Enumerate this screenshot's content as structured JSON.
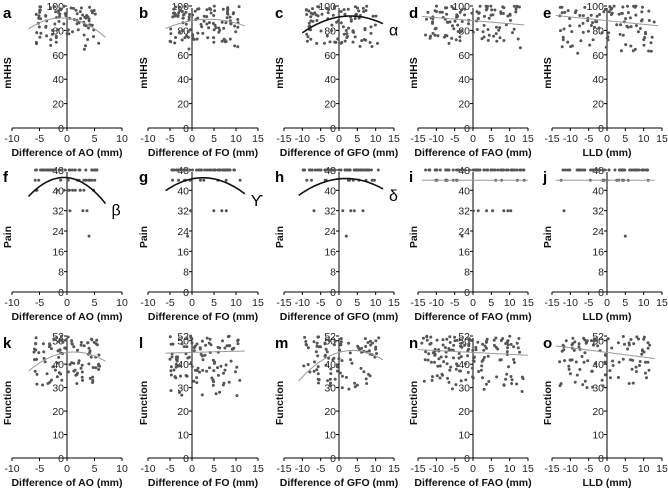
{
  "figure": {
    "rows": [
      {
        "y_label": "mHHS",
        "ylim": [
          0,
          100
        ],
        "y_ticks": [
          "0",
          "20",
          "40",
          "60",
          "80",
          "100"
        ]
      },
      {
        "y_label": "Pain",
        "ylim": [
          0,
          48
        ],
        "y_ticks": [
          "0",
          "8",
          "16",
          "24",
          "32",
          "40",
          "48"
        ]
      },
      {
        "y_label": "Function",
        "ylim": [
          0,
          52
        ],
        "y_ticks": [
          "0",
          "10",
          "20",
          "30",
          "40",
          "50",
          "52"
        ]
      }
    ],
    "columns": [
      {
        "x_label": "Difference of AO (mm)",
        "xlim": [
          -10,
          10
        ],
        "x_ticks": [
          "-10",
          "-5",
          "0",
          "5",
          "10"
        ]
      },
      {
        "x_label": "Difference of FO (mm)",
        "xlim": [
          -10,
          15
        ],
        "x_ticks": [
          "-10",
          "-5",
          "0",
          "5",
          "10",
          "15"
        ]
      },
      {
        "x_label": "Difference of GFO (mm)",
        "xlim": [
          -15,
          15
        ],
        "x_ticks": [
          "-15",
          "-10",
          "-5",
          "0",
          "5",
          "10",
          "15"
        ]
      },
      {
        "x_label": "Difference of FAO (mm)",
        "xlim": [
          -15,
          15
        ],
        "x_ticks": [
          "-15",
          "-10",
          "-5",
          "0",
          "5",
          "10",
          "15"
        ]
      },
      {
        "x_label": "LLD (mm)",
        "xlim": [
          -15,
          15
        ],
        "x_ticks": [
          "-15",
          "-10",
          "-5",
          "0",
          "5",
          "10",
          "15"
        ]
      }
    ]
  },
  "chart_data": [
    {
      "type": "scatter",
      "panel": "a",
      "row": 0,
      "col": 0,
      "ylabel": "mHHS",
      "xlabel": "Difference of AO (mm)",
      "xlim": [
        -10,
        10
      ],
      "ylim": [
        0,
        100
      ],
      "fit": {
        "style": "thin",
        "coef": [
          -0.25,
          -0.5,
          90
        ]
      },
      "annotation": "",
      "seed": 11,
      "x_range": [
        -6,
        6
      ],
      "y_range": [
        62,
        100
      ],
      "n": 90
    },
    {
      "type": "scatter",
      "panel": "b",
      "row": 0,
      "col": 1,
      "ylabel": "mHHS",
      "xlabel": "Difference of FO (mm)",
      "xlim": [
        -10,
        15
      ],
      "ylim": [
        0,
        100
      ],
      "fit": {
        "style": "thin",
        "coef": [
          -0.08,
          0.6,
          88
        ]
      },
      "annotation": "",
      "seed": 12,
      "x_range": [
        -5,
        11
      ],
      "y_range": [
        62,
        100
      ],
      "n": 110
    },
    {
      "type": "scatter",
      "panel": "c",
      "row": 0,
      "col": 2,
      "ylabel": "mHHS",
      "xlabel": "Difference of GFO (mm)",
      "xlim": [
        -15,
        15
      ],
      "ylim": [
        0,
        100
      ],
      "fit": {
        "style": "bold",
        "coef": [
          -0.08,
          0.5,
          91
        ]
      },
      "annotation": "α",
      "seed": 13,
      "x_range": [
        -9,
        11
      ],
      "y_range": [
        60,
        100
      ],
      "n": 95
    },
    {
      "type": "scatter",
      "panel": "d",
      "row": 0,
      "col": 3,
      "ylabel": "mHHS",
      "xlabel": "Difference of FAO (mm)",
      "xlim": [
        -15,
        15
      ],
      "ylim": [
        0,
        100
      ],
      "fit": {
        "style": "thin",
        "coef": [
          0,
          -0.25,
          88
        ]
      },
      "annotation": "",
      "seed": 14,
      "x_range": [
        -13,
        13
      ],
      "y_range": [
        64,
        100
      ],
      "n": 110
    },
    {
      "type": "scatter",
      "panel": "e",
      "row": 0,
      "col": 4,
      "ylabel": "mHHS",
      "xlabel": "LLD (mm)",
      "xlim": [
        -15,
        15
      ],
      "ylim": [
        0,
        100
      ],
      "fit": {
        "style": "thin",
        "coef": [
          0,
          -0.3,
          88
        ]
      },
      "annotation": "",
      "seed": 15,
      "x_range": [
        -13,
        13
      ],
      "y_range": [
        60,
        100
      ],
      "n": 100
    },
    {
      "type": "scatter",
      "panel": "f",
      "row": 1,
      "col": 0,
      "ylabel": "Pain",
      "xlabel": "Difference of AO (mm)",
      "xlim": [
        -10,
        10
      ],
      "ylim": [
        0,
        48
      ],
      "fit": {
        "style": "bold",
        "coef": [
          -0.18,
          -0.2,
          45
        ]
      },
      "annotation": "β",
      "seed": 21,
      "x_range": [
        -6,
        6
      ],
      "y_range": [
        32,
        48
      ],
      "levels": [
        48,
        44,
        40,
        32
      ],
      "outliers": [
        [
          4,
          22
        ]
      ],
      "n": 70
    },
    {
      "type": "scatter",
      "panel": "g",
      "row": 1,
      "col": 1,
      "ylabel": "Pain",
      "xlabel": "Difference of FO (mm)",
      "xlim": [
        -10,
        15
      ],
      "ylim": [
        0,
        48
      ],
      "fit": {
        "style": "bold",
        "coef": [
          -0.07,
          0.35,
          44.5
        ]
      },
      "annotation": "ϒ",
      "seed": 22,
      "x_range": [
        -5,
        11
      ],
      "y_range": [
        32,
        48
      ],
      "levels": [
        48,
        44,
        32
      ],
      "outliers": [
        [
          -1,
          22
        ]
      ],
      "n": 60
    },
    {
      "type": "scatter",
      "panel": "h",
      "row": 1,
      "col": 2,
      "ylabel": "Pain",
      "xlabel": "Difference of GFO (mm)",
      "xlim": [
        -15,
        15
      ],
      "ylim": [
        0,
        48
      ],
      "fit": {
        "style": "bold",
        "coef": [
          -0.04,
          0.15,
          44.5
        ]
      },
      "annotation": "δ",
      "seed": 23,
      "x_range": [
        -10,
        11
      ],
      "y_range": [
        32,
        48
      ],
      "levels": [
        48,
        44,
        32
      ],
      "outliers": [
        [
          2,
          22
        ]
      ],
      "n": 70
    },
    {
      "type": "scatter",
      "panel": "i",
      "row": 1,
      "col": 3,
      "ylabel": "Pain",
      "xlabel": "Difference of FAO (mm)",
      "xlim": [
        -15,
        15
      ],
      "ylim": [
        0,
        48
      ],
      "fit": {
        "style": "thin",
        "coef": [
          0,
          0,
          44
        ]
      },
      "annotation": "",
      "seed": 24,
      "x_range": [
        -13,
        14
      ],
      "y_range": [
        32,
        48
      ],
      "levels": [
        48,
        44,
        32
      ],
      "outliers": [
        [
          -3,
          22
        ]
      ],
      "n": 80
    },
    {
      "type": "scatter",
      "panel": "j",
      "row": 1,
      "col": 4,
      "ylabel": "Pain",
      "xlabel": "LLD (mm)",
      "xlim": [
        -15,
        15
      ],
      "ylim": [
        0,
        48
      ],
      "fit": {
        "style": "thin",
        "coef": [
          0,
          0,
          44
        ]
      },
      "annotation": "",
      "seed": 25,
      "x_range": [
        -13,
        12
      ],
      "y_range": [
        32,
        48
      ],
      "levels": [
        48,
        44,
        32
      ],
      "outliers": [
        [
          5,
          22
        ]
      ],
      "n": 60
    },
    {
      "type": "scatter",
      "panel": "k",
      "row": 2,
      "col": 0,
      "ylabel": "Function",
      "xlabel": "Difference of AO (mm)",
      "xlim": [
        -10,
        10
      ],
      "ylim": [
        0,
        52
      ],
      "fit": {
        "style": "thin",
        "coef": [
          -0.12,
          0.3,
          45
        ]
      },
      "annotation": "",
      "seed": 31,
      "x_range": [
        -6,
        6
      ],
      "y_range": [
        28,
        52
      ],
      "n": 100
    },
    {
      "type": "scatter",
      "panel": "l",
      "row": 2,
      "col": 1,
      "ylabel": "Function",
      "xlabel": "Difference of FO (mm)",
      "xlim": [
        -10,
        15
      ],
      "ylim": [
        0,
        52
      ],
      "fit": {
        "style": "thin",
        "coef": [
          0,
          0.05,
          45
        ]
      },
      "annotation": "",
      "seed": 32,
      "x_range": [
        -5,
        11
      ],
      "y_range": [
        26,
        52
      ],
      "n": 110
    },
    {
      "type": "scatter",
      "panel": "m",
      "row": 2,
      "col": 2,
      "ylabel": "Function",
      "xlabel": "Difference of GFO (mm)",
      "xlim": [
        -15,
        15
      ],
      "ylim": [
        0,
        52
      ],
      "fit": {
        "style": "thin",
        "coef": [
          -0.06,
          0.45,
          45
        ]
      },
      "annotation": "",
      "seed": 33,
      "x_range": [
        -10,
        11
      ],
      "y_range": [
        28,
        52
      ],
      "n": 95
    },
    {
      "type": "scatter",
      "panel": "n",
      "row": 2,
      "col": 3,
      "ylabel": "Function",
      "xlabel": "Difference of FAO (mm)",
      "xlim": [
        -15,
        15
      ],
      "ylim": [
        0,
        52
      ],
      "fit": {
        "style": "thin",
        "coef": [
          0,
          -0.08,
          45
        ]
      },
      "annotation": "",
      "seed": 34,
      "x_range": [
        -14,
        14
      ],
      "y_range": [
        28,
        52
      ],
      "n": 150
    },
    {
      "type": "scatter",
      "panel": "o",
      "row": 2,
      "col": 4,
      "ylabel": "Function",
      "xlabel": "LLD (mm)",
      "xlim": [
        -15,
        15
      ],
      "ylim": [
        0,
        52
      ],
      "fit": {
        "style": "thin",
        "coef": [
          0,
          -0.2,
          45
        ]
      },
      "annotation": "",
      "seed": 35,
      "x_range": [
        -13,
        12
      ],
      "y_range": [
        26,
        52
      ],
      "n": 100
    }
  ],
  "colors": {
    "point": "#555555",
    "fit_bold": "#111111",
    "fit_thin": "#999999",
    "axis": "#000000"
  }
}
